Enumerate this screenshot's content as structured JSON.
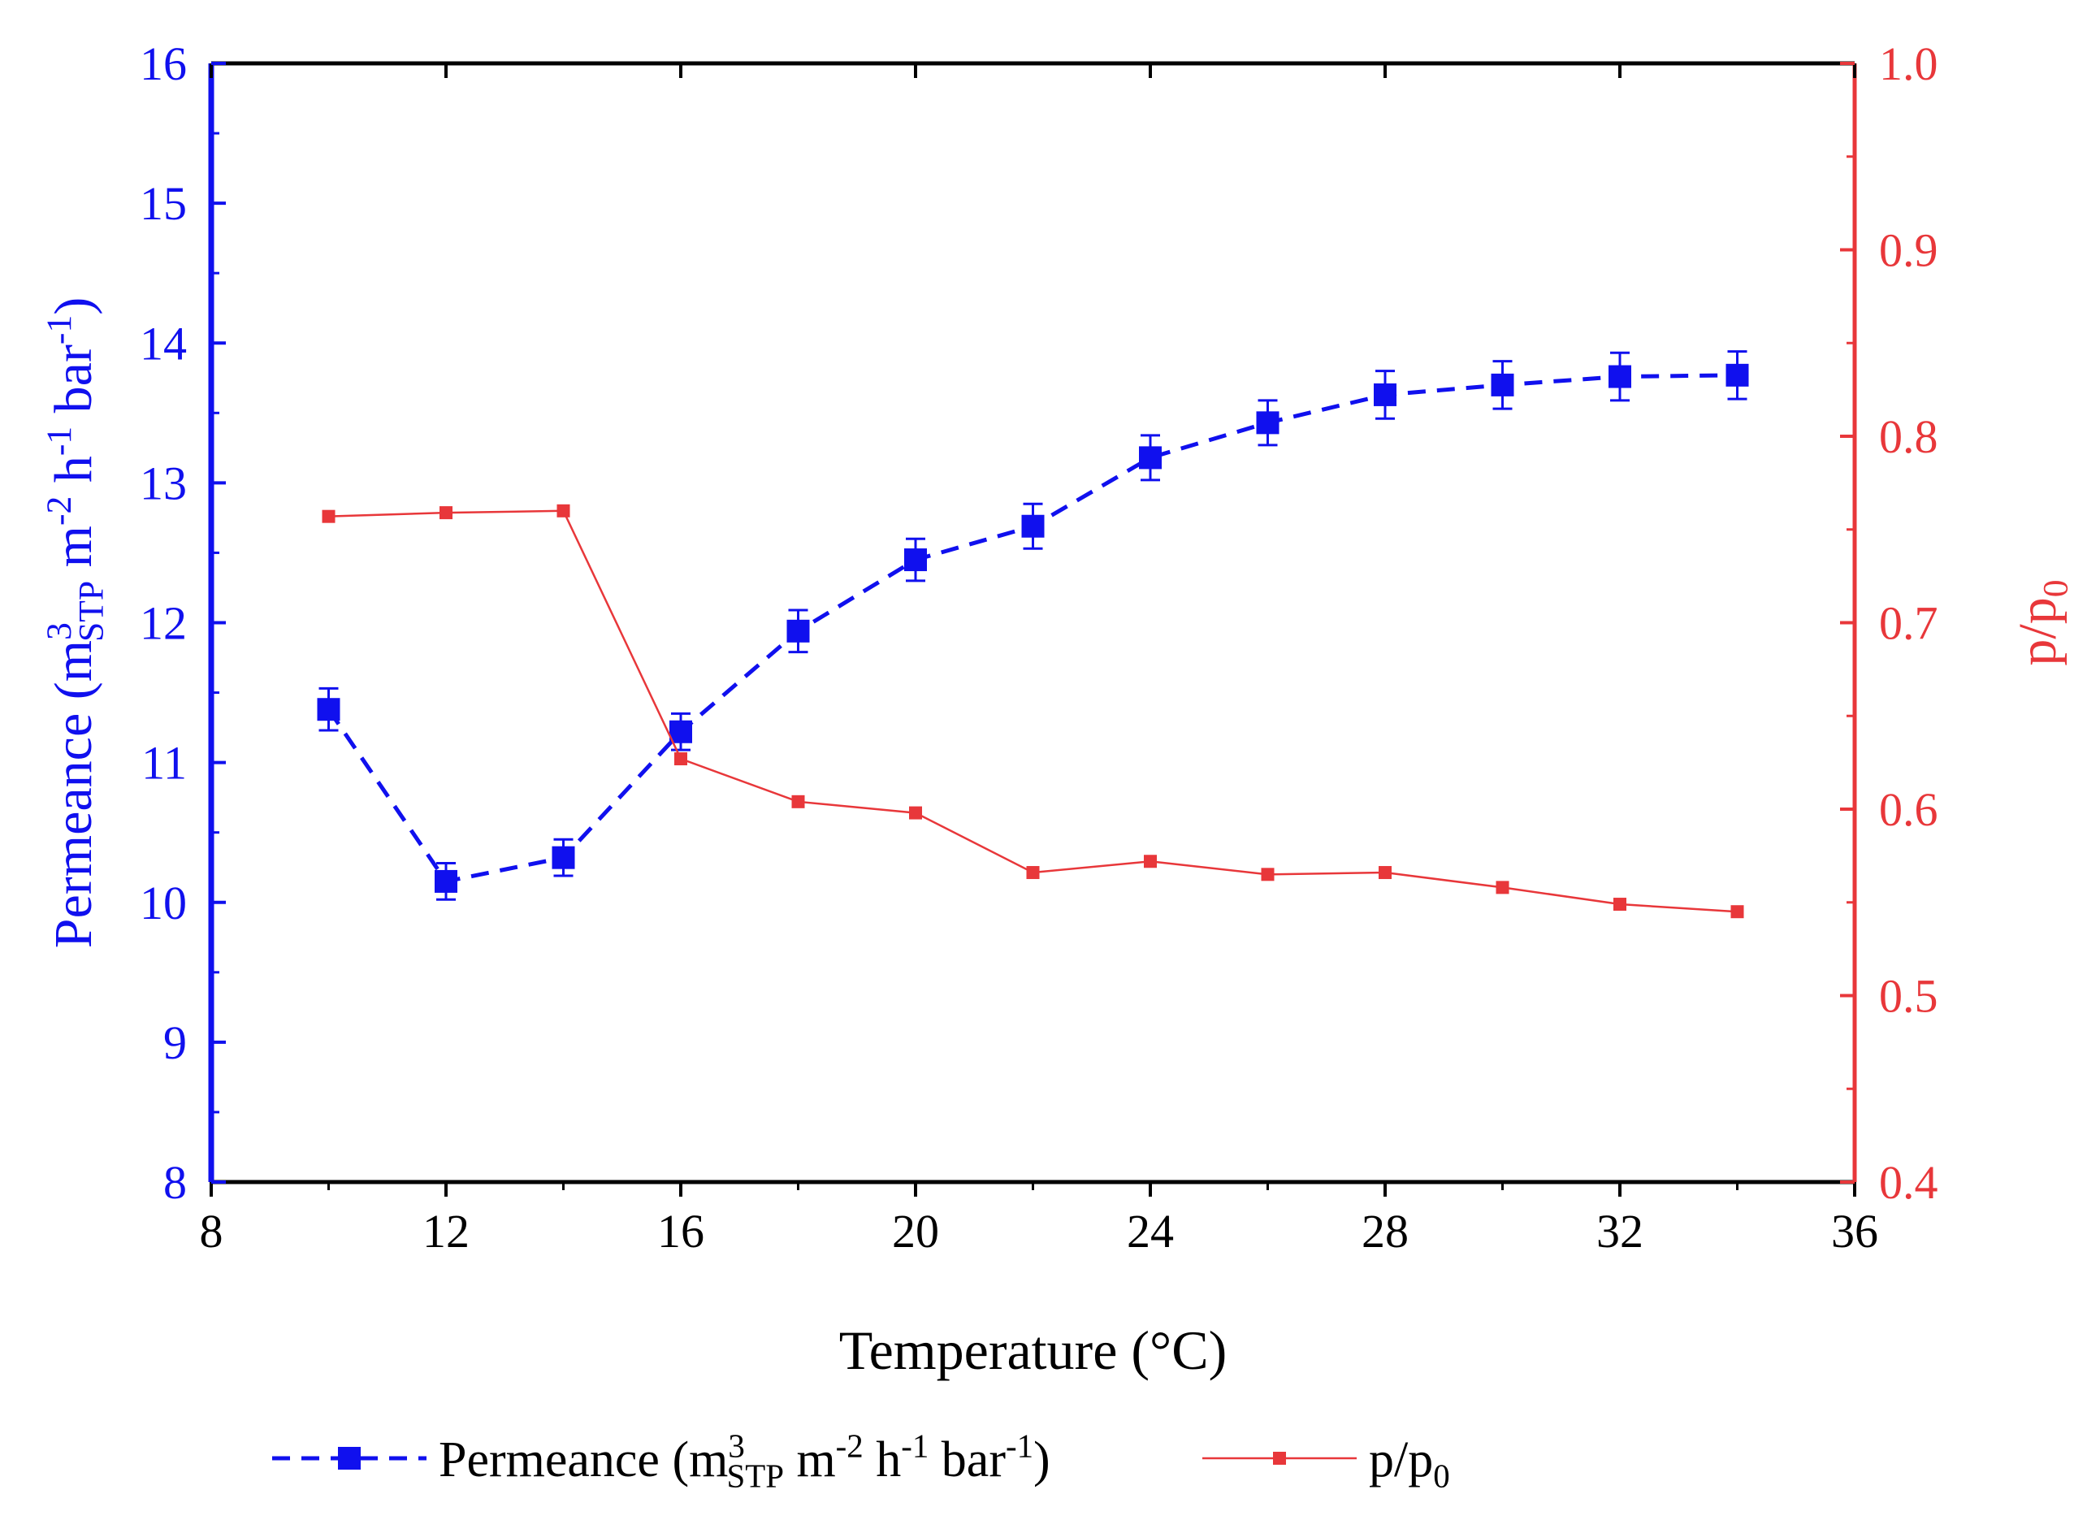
{
  "chart_data": {
    "type": "line",
    "x": [
      10,
      12,
      14,
      16,
      18,
      20,
      22,
      24,
      26,
      28,
      30,
      32,
      34
    ],
    "xlabel": "Temperature (°C)",
    "xlim": [
      8,
      36
    ],
    "xticks": [
      "8",
      "12",
      "16",
      "20",
      "24",
      "28",
      "32",
      "36"
    ],
    "series": [
      {
        "name": "Permeance (m3STP m-2 h-1 bar-1)",
        "axis": "left",
        "color": "#1010ee",
        "style": "dashed",
        "marker": "square",
        "values": [
          11.38,
          10.15,
          10.32,
          11.22,
          11.94,
          12.45,
          12.69,
          13.18,
          13.43,
          13.63,
          13.7,
          13.76,
          13.77
        ],
        "error": [
          0.15,
          0.13,
          0.13,
          0.13,
          0.15,
          0.15,
          0.16,
          0.16,
          0.16,
          0.17,
          0.17,
          0.17,
          0.17
        ]
      },
      {
        "name": "p/p0",
        "axis": "right",
        "color": "#e8373a",
        "style": "solid",
        "marker": "small-square",
        "values": [
          0.757,
          0.759,
          0.76,
          0.627,
          0.604,
          0.598,
          0.566,
          0.572,
          0.565,
          0.566,
          0.558,
          0.549,
          0.545
        ]
      }
    ],
    "yaxis_left": {
      "label_parts": [
        "Permeance (m",
        "3",
        "STP",
        " m",
        "-2",
        " h",
        "-1",
        " bar",
        "-1",
        ")"
      ],
      "ylim": [
        8,
        16
      ],
      "ticks": [
        "8",
        "9",
        "10",
        "11",
        "12",
        "13",
        "14",
        "15",
        "16"
      ],
      "color": "#1010ee"
    },
    "yaxis_right": {
      "label": "p/p",
      "label_sub": "0",
      "ylim": [
        0.4,
        1.0
      ],
      "ticks": [
        "0.4",
        "0.5",
        "0.6",
        "0.7",
        "0.8",
        "0.9",
        "1.0"
      ],
      "color": "#e8373a"
    },
    "legend": {
      "position": "bottom",
      "entries": [
        {
          "series": 0,
          "parts": [
            "Permeance (m",
            "3",
            "STP",
            " m",
            "-2",
            " h",
            "-1",
            " bar",
            "-1",
            ")"
          ]
        },
        {
          "series": 1,
          "parts": [
            "p/p",
            "0"
          ]
        }
      ]
    }
  }
}
